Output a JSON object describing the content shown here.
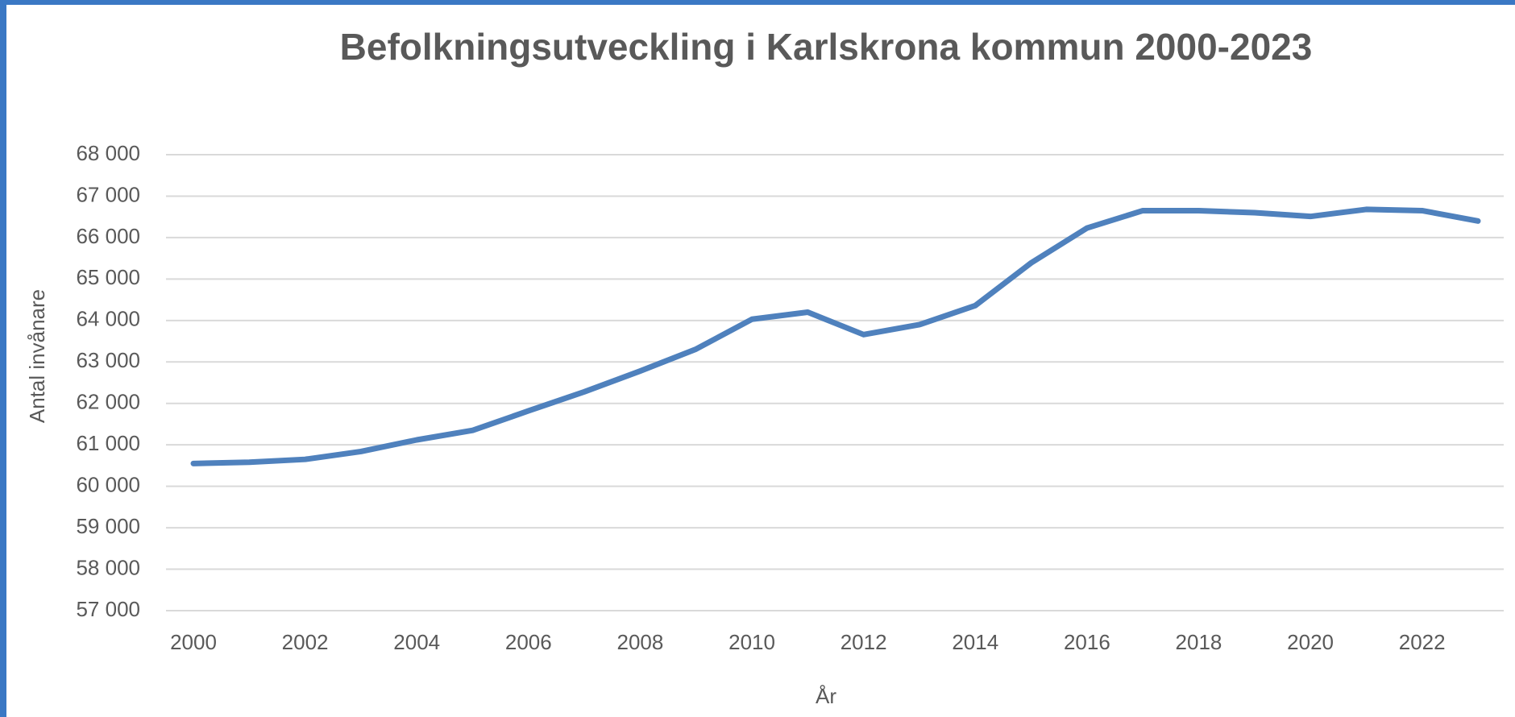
{
  "chart_data": {
    "type": "line",
    "title": "Befolkningsutveckling i Karlskrona kommun 2000-2023",
    "x_label": "År",
    "y_label": "Antal invånare",
    "x": [
      2000,
      2001,
      2002,
      2003,
      2004,
      2005,
      2006,
      2007,
      2008,
      2009,
      2010,
      2011,
      2012,
      2013,
      2014,
      2015,
      2016,
      2017,
      2018,
      2019,
      2020,
      2021,
      2022,
      2023
    ],
    "series": [
      {
        "color": "#4f81bd",
        "values": [
          60550,
          60580,
          60650,
          60840,
          61120,
          61350,
          61820,
          62280,
          62780,
          63310,
          64030,
          64200,
          63660,
          63900,
          64360,
          65390,
          66230,
          66650,
          66650,
          66600,
          66510,
          66680,
          66650,
          66400
        ]
      }
    ],
    "xlim": [
      2000,
      2023
    ],
    "xticks": [
      2000,
      2002,
      2004,
      2006,
      2008,
      2010,
      2012,
      2014,
      2016,
      2018,
      2020,
      2022
    ],
    "ylim": [
      57000,
      68000
    ],
    "yticks": [
      {
        "value": 57000,
        "label": "57 000"
      },
      {
        "value": 58000,
        "label": "58 000"
      },
      {
        "value": 59000,
        "label": "59 000"
      },
      {
        "value": 60000,
        "label": "60 000"
      },
      {
        "value": 61000,
        "label": "61 000"
      },
      {
        "value": 62000,
        "label": "62 000"
      },
      {
        "value": 63000,
        "label": "63 000"
      },
      {
        "value": 64000,
        "label": "64 000"
      },
      {
        "value": 65000,
        "label": "65 000"
      },
      {
        "value": 66000,
        "label": "66 000"
      },
      {
        "value": 67000,
        "label": "67 000"
      },
      {
        "value": 68000,
        "label": "68 000"
      }
    ],
    "grid": true
  }
}
